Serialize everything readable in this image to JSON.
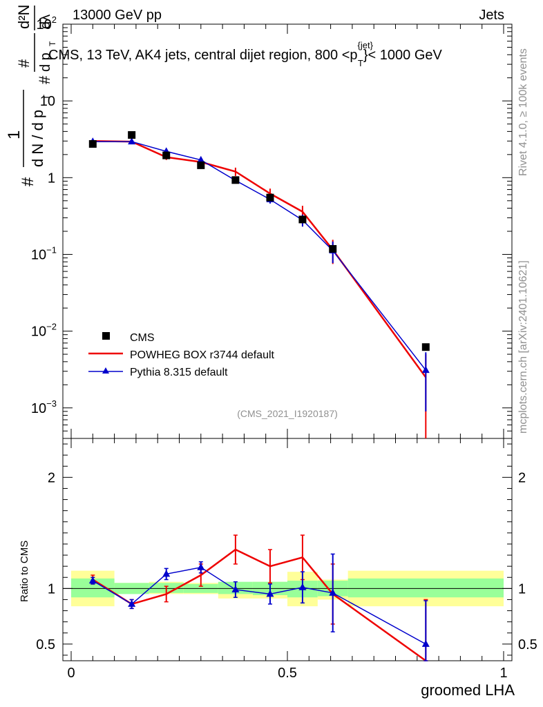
{
  "header": {
    "beam": "13000 GeV pp",
    "process": "Jets",
    "title_main": "CMS, 13 TeV, AK4 jets, central dijet region, 800 <p",
    "title_sup": "{jet}",
    "title_sub": "T",
    "title_tail": "}< 1000 GeV",
    "side_rivet": "Rivet 4.1.0, ≥ 100k events",
    "side_mcplots": "mcplots.cern.ch [arXiv:2401.10621]",
    "analysis": "(CMS_2021_I1920187)"
  },
  "ylabel_main": {
    "hash1": "#",
    "one": "1",
    "dN": "d N / d p",
    "T1": "T",
    "hash2": "#",
    "dpT": "d p",
    "T2": "T",
    "d2N": "d²N",
    "dlambda": "dλ"
  },
  "ylabel_ratio": "Ratio to CMS",
  "xlabel": "groomed LHA",
  "legend": {
    "cms": "CMS",
    "powheg": "POWHEG BOX r3744 default",
    "pythia": "Pythia 8.315 default"
  },
  "colors": {
    "cms": "#000000",
    "powheg": "#ee0000",
    "pythia": "#0000cc",
    "band_inner": "#99ff99",
    "band_outer": "#ffff99"
  },
  "chart_data": {
    "type": "line",
    "xlim": [
      0,
      1
    ],
    "main": {
      "yscale": "log",
      "ylim": [
        0.0004,
        100
      ],
      "y_ticks": [
        {
          "v": 100,
          "base": "10",
          "exp": "2"
        },
        {
          "v": 10,
          "base": "10",
          "exp": ""
        },
        {
          "v": 1,
          "base": "1",
          "exp": ""
        },
        {
          "v": 0.1,
          "base": "10",
          "exp": "−1"
        },
        {
          "v": 0.01,
          "base": "10",
          "exp": "−2"
        },
        {
          "v": 0.001,
          "base": "10",
          "exp": "−3"
        }
      ]
    },
    "ratio": {
      "ylim": [
        0.35,
        2.35
      ],
      "y_ticks": [
        {
          "v": 0.5,
          "label": "0.5"
        },
        {
          "v": 1,
          "label": "1"
        },
        {
          "v": 2,
          "label": "2"
        }
      ]
    },
    "x_ticks": [
      {
        "v": 0,
        "label": "0"
      },
      {
        "v": 0.5,
        "label": "0.5"
      },
      {
        "v": 1,
        "label": "1"
      }
    ],
    "bins": [
      {
        "lo": 0.0,
        "hi": 0.1
      },
      {
        "lo": 0.1,
        "hi": 0.18
      },
      {
        "lo": 0.18,
        "hi": 0.26
      },
      {
        "lo": 0.26,
        "hi": 0.34
      },
      {
        "lo": 0.34,
        "hi": 0.42
      },
      {
        "lo": 0.42,
        "hi": 0.5
      },
      {
        "lo": 0.5,
        "hi": 0.57
      },
      {
        "lo": 0.57,
        "hi": 0.64
      },
      {
        "lo": 0.64,
        "hi": 1.0
      }
    ],
    "cms": {
      "x": [
        0.05,
        0.14,
        0.22,
        0.3,
        0.38,
        0.46,
        0.535,
        0.605,
        0.82
      ],
      "y": [
        2.75,
        3.6,
        1.95,
        1.45,
        0.93,
        0.55,
        0.285,
        0.118,
        0.0062
      ]
    },
    "bands": {
      "inner": [
        [
          0.92,
          1.09
        ],
        [
          0.95,
          1.05
        ],
        [
          0.96,
          1.05
        ],
        [
          0.96,
          1.04
        ],
        [
          0.95,
          1.06
        ],
        [
          0.94,
          1.06
        ],
        [
          0.92,
          1.07
        ],
        [
          0.93,
          1.07
        ],
        [
          0.92,
          1.09
        ]
      ],
      "outer": [
        [
          0.84,
          1.16
        ],
        [
          0.96,
          1.05
        ],
        [
          0.95,
          1.06
        ],
        [
          0.95,
          1.05
        ],
        [
          0.91,
          1.05
        ],
        [
          0.91,
          1.06
        ],
        [
          0.84,
          1.15
        ],
        [
          0.9,
          1.08
        ],
        [
          0.84,
          1.16
        ]
      ]
    },
    "series": [
      {
        "name": "POWHEG BOX r3744 default",
        "x": [
          0.05,
          0.14,
          0.22,
          0.3,
          0.38,
          0.46,
          0.535,
          0.605,
          0.82
        ],
        "y": [
          3.0,
          2.95,
          1.85,
          1.6,
          1.2,
          0.62,
          0.36,
          0.115,
          0.0025
        ],
        "yerr": [
          0.1,
          0.12,
          0.15,
          0.15,
          0.15,
          0.1,
          0.07,
          0.04,
          0.0025
        ],
        "ratio": [
          1.08,
          0.86,
          0.95,
          1.12,
          1.35,
          1.2,
          1.28,
          0.95,
          0.3
        ],
        "ratio_err": [
          0.04,
          0.04,
          0.07,
          0.1,
          0.13,
          0.15,
          0.2,
          0.27,
          0.6
        ]
      },
      {
        "name": "Pythia 8.315 default",
        "x": [
          0.05,
          0.14,
          0.22,
          0.3,
          0.38,
          0.46,
          0.535,
          0.605,
          0.82
        ],
        "y": [
          2.95,
          2.95,
          2.2,
          1.7,
          0.92,
          0.52,
          0.28,
          0.112,
          0.0031
        ],
        "yerr": [
          0.1,
          0.1,
          0.1,
          0.1,
          0.07,
          0.06,
          0.05,
          0.035,
          0.0022
        ],
        "ratio": [
          1.07,
          0.86,
          1.13,
          1.19,
          0.99,
          0.95,
          1.01,
          0.96,
          0.5
        ],
        "ratio_err": [
          0.03,
          0.04,
          0.05,
          0.05,
          0.07,
          0.09,
          0.14,
          0.35,
          0.39
        ]
      }
    ]
  }
}
